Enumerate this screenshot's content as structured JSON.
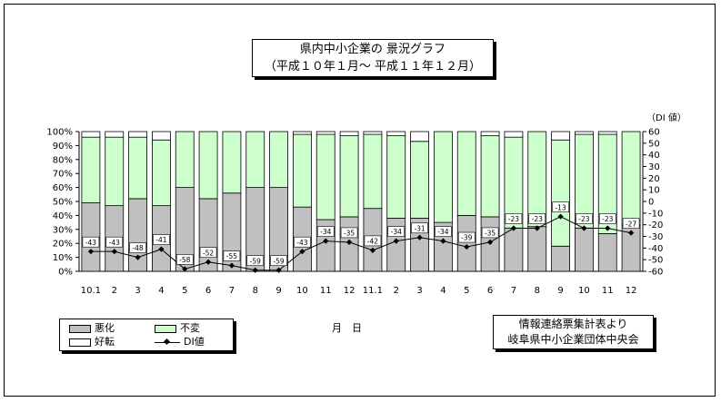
{
  "title": {
    "line1": "県内中小企業の 景況グラフ",
    "line2": "（平成１０年１月～ 平成１１年１２月）"
  },
  "source": {
    "line1": "情報連絡票集計表より",
    "line2": "岐阜県中小企業団体中央会"
  },
  "xaxis_title": "月　日",
  "right_axis_title": "（DI 値）",
  "colors": {
    "worse": "#c0c0c0",
    "same": "#ccffcc",
    "better": "#ffffff",
    "line": "#000000"
  },
  "legend": {
    "worse": "悪化",
    "same": "不変",
    "better": "好転",
    "di": "DI値"
  },
  "chart_data": {
    "type": "bar",
    "stacked": true,
    "percent": true,
    "categories": [
      "10.1",
      "2",
      "3",
      "4",
      "5",
      "6",
      "7",
      "8",
      "9",
      "10",
      "11",
      "12",
      "11.1",
      "2",
      "3",
      "4",
      "5",
      "6",
      "7",
      "8",
      "9",
      "10",
      "11",
      "12"
    ],
    "left_axis": {
      "min": 0,
      "max": 100,
      "step": 10,
      "unit": "%"
    },
    "right_axis": {
      "min": -60,
      "max": 60,
      "step": 10
    },
    "series": [
      {
        "name": "悪化",
        "key": "worse",
        "values": [
          49,
          47,
          52,
          47,
          60,
          52,
          56,
          60,
          60,
          46,
          37,
          39,
          45,
          38,
          38,
          35,
          40,
          39,
          31,
          32,
          18,
          31,
          27,
          33
        ]
      },
      {
        "name": "不変",
        "key": "same",
        "values": [
          47,
          49,
          44,
          47,
          40,
          48,
          44,
          40,
          40,
          52,
          61,
          58,
          53,
          59,
          55,
          65,
          60,
          58,
          65,
          68,
          76,
          67,
          71,
          67
        ]
      },
      {
        "name": "好転",
        "key": "better",
        "values": [
          4,
          4,
          4,
          6,
          0,
          0,
          0,
          0,
          0,
          2,
          2,
          3,
          2,
          3,
          7,
          0,
          0,
          3,
          4,
          0,
          6,
          2,
          2,
          0
        ]
      }
    ],
    "di": {
      "name": "DI値",
      "values": [
        -43,
        -43,
        -48,
        -41,
        -58,
        -52,
        -55,
        -59,
        -59,
        -43,
        -34,
        -35,
        -42,
        -34,
        -31,
        -34,
        -39,
        -35,
        -23,
        -23,
        -13,
        -23,
        -23,
        -27
      ],
      "labels": [
        "-43",
        "-43",
        "-48",
        "-41",
        "-58",
        "-52",
        "-55",
        "-59",
        "-59",
        "-43",
        "-34",
        "-35",
        "-42",
        "-34",
        "-31",
        "-34",
        "-39",
        "-35",
        "-23",
        "-23",
        "-13",
        "-23",
        "-23",
        "-27"
      ]
    },
    "legend_position": "bottom-left",
    "grid": false
  }
}
